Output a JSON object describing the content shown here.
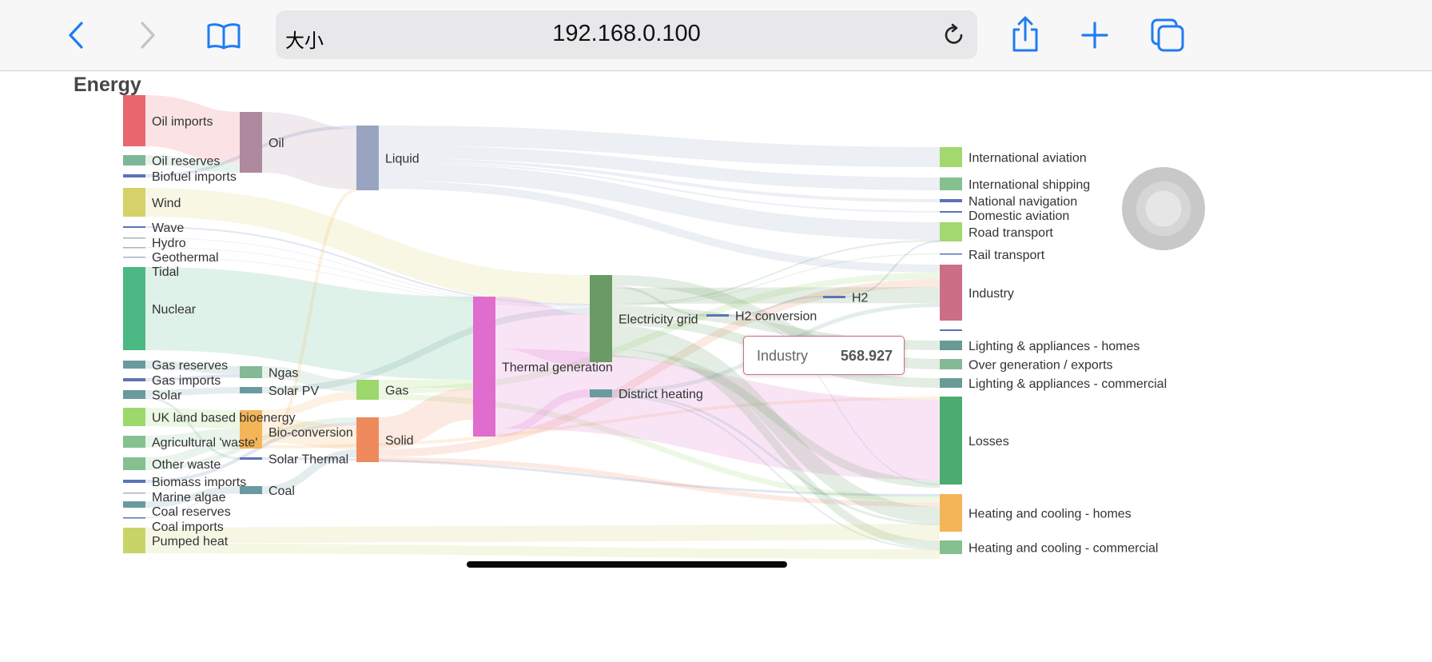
{
  "browser": {
    "text_size_label": "大小",
    "url": "192.168.0.100",
    "icons": [
      "back-icon",
      "forward-icon",
      "bookmarks-icon",
      "reload-icon",
      "share-icon",
      "new-tab-icon",
      "tabs-icon"
    ],
    "accent_color": "#1f7cf0"
  },
  "chart_data": {
    "type": "sankey",
    "title": "Energy",
    "nodes": [
      {
        "name": "Oil imports",
        "color": "#e8666e"
      },
      {
        "name": "Oil reserves",
        "color": "#7fb59a"
      },
      {
        "name": "Biofuel imports",
        "color": "#5b73b5"
      },
      {
        "name": "Wind",
        "color": "#d4d268"
      },
      {
        "name": "Wave",
        "color": "#5b73b5"
      },
      {
        "name": "Hydro",
        "color": "#aab0c0"
      },
      {
        "name": "Geothermal",
        "color": "#aab0c0"
      },
      {
        "name": "Tidal",
        "color": "#aab0c0"
      },
      {
        "name": "Nuclear",
        "color": "#4cb884"
      },
      {
        "name": "Gas reserves",
        "color": "#6a9aa0"
      },
      {
        "name": "Gas imports",
        "color": "#5b73b5"
      },
      {
        "name": "Solar",
        "color": "#6a9aa0"
      },
      {
        "name": "UK land based bioenergy",
        "color": "#9dd86c"
      },
      {
        "name": "Agricultural 'waste'",
        "color": "#85c090"
      },
      {
        "name": "Other waste",
        "color": "#85c090"
      },
      {
        "name": "Biomass imports",
        "color": "#5b73b5"
      },
      {
        "name": "Marine algae",
        "color": "#aab0c0"
      },
      {
        "name": "Coal reserves",
        "color": "#6a9aa0"
      },
      {
        "name": "Coal imports",
        "color": "#5b73b5"
      },
      {
        "name": "Pumped heat",
        "color": "#c8d468"
      },
      {
        "name": "Oil",
        "color": "#ad8a9e"
      },
      {
        "name": "Ngas",
        "color": "#85b894"
      },
      {
        "name": "Solar PV",
        "color": "#6a9aa0"
      },
      {
        "name": "Bio-conversion",
        "color": "#f4b458"
      },
      {
        "name": "Solar Thermal",
        "color": "#5b73b5"
      },
      {
        "name": "Coal",
        "color": "#6a9aa0"
      },
      {
        "name": "Liquid",
        "color": "#98a4c0"
      },
      {
        "name": "Gas",
        "color": "#9dd86c"
      },
      {
        "name": "Solid",
        "color": "#ee8a5c"
      },
      {
        "name": "Thermal generation",
        "color": "#e06cce"
      },
      {
        "name": "Electricity grid",
        "color": "#6a9a66"
      },
      {
        "name": "District heating",
        "color": "#6a9aa0"
      },
      {
        "name": "H2 conversion",
        "color": "#5b73b5"
      },
      {
        "name": "H2",
        "color": "#5b73b5"
      },
      {
        "name": "International aviation",
        "color": "#a3d86e"
      },
      {
        "name": "International shipping",
        "color": "#85c090"
      },
      {
        "name": "National navigation",
        "color": "#5b73b5"
      },
      {
        "name": "Domestic aviation",
        "color": "#5b73b5"
      },
      {
        "name": "Road transport",
        "color": "#a3d86e"
      },
      {
        "name": "Rail transport",
        "color": "#5b73b5"
      },
      {
        "name": "Industry",
        "color": "#cc6e86"
      },
      {
        "name": "",
        "color": "#5b73b5"
      },
      {
        "name": "Lighting & appliances - homes",
        "color": "#6a9a94"
      },
      {
        "name": "Over generation / exports",
        "color": "#85b894"
      },
      {
        "name": "Lighting & appliances - commercial",
        "color": "#6a9a94"
      },
      {
        "name": "Losses",
        "color": "#4cac70"
      },
      {
        "name": "Heating and cooling - homes",
        "color": "#f4b458"
      },
      {
        "name": "Heating and cooling - commercial",
        "color": "#85c090"
      }
    ],
    "links": [
      [
        "Oil imports",
        "Oil"
      ],
      [
        "Oil reserves",
        "Oil"
      ],
      [
        "Biofuel imports",
        "Liquid"
      ],
      [
        "Oil",
        "Liquid"
      ],
      [
        "Liquid",
        "International aviation"
      ],
      [
        "Liquid",
        "International shipping"
      ],
      [
        "Liquid",
        "National navigation"
      ],
      [
        "Liquid",
        "Domestic aviation"
      ],
      [
        "Liquid",
        "Road transport"
      ],
      [
        "Liquid",
        "Industry"
      ],
      [
        "Wind",
        "Electricity grid"
      ],
      [
        "Wave",
        "Electricity grid"
      ],
      [
        "Hydro",
        "Electricity grid"
      ],
      [
        "Geothermal",
        "Electricity grid"
      ],
      [
        "Tidal",
        "Electricity grid"
      ],
      [
        "Nuclear",
        "Thermal generation"
      ],
      [
        "Gas reserves",
        "Ngas"
      ],
      [
        "Gas imports",
        "Ngas"
      ],
      [
        "Ngas",
        "Gas"
      ],
      [
        "Solar",
        "Solar PV"
      ],
      [
        "Solar",
        "Solar Thermal"
      ],
      [
        "Solar PV",
        "Electricity grid"
      ],
      [
        "UK land based bioenergy",
        "Bio-conversion"
      ],
      [
        "Agricultural 'waste'",
        "Bio-conversion"
      ],
      [
        "Other waste",
        "Bio-conversion"
      ],
      [
        "Other waste",
        "Solid"
      ],
      [
        "Biomass imports",
        "Solid"
      ],
      [
        "Marine algae",
        "Bio-conversion"
      ],
      [
        "Coal reserves",
        "Coal"
      ],
      [
        "Coal imports",
        "Coal"
      ],
      [
        "Bio-conversion",
        "Gas"
      ],
      [
        "Bio-conversion",
        "Solid"
      ],
      [
        "Bio-conversion",
        "Liquid"
      ],
      [
        "Bio-conversion",
        "Losses"
      ],
      [
        "Coal",
        "Solid"
      ],
      [
        "Solar Thermal",
        "Heating and cooling - homes"
      ],
      [
        "Gas",
        "Thermal generation"
      ],
      [
        "Gas",
        "Industry"
      ],
      [
        "Gas",
        "Heating and cooling - homes"
      ],
      [
        "Solid",
        "Thermal generation"
      ],
      [
        "Solid",
        "Industry"
      ],
      [
        "Solid",
        "Heating and cooling - homes"
      ],
      [
        "Thermal generation",
        "Electricity grid"
      ],
      [
        "Thermal generation",
        "Losses"
      ],
      [
        "Thermal generation",
        "District heating"
      ],
      [
        "Electricity grid",
        "Over generation / exports"
      ],
      [
        "Electricity grid",
        "H2 conversion"
      ],
      [
        "Electricity grid",
        "Industry"
      ],
      [
        "Electricity grid",
        "Road transport"
      ],
      [
        "Electricity grid",
        "Rail transport"
      ],
      [
        "Electricity grid",
        "Lighting & appliances - homes"
      ],
      [
        "Electricity grid",
        "Lighting & appliances - commercial"
      ],
      [
        "Electricity grid",
        "Heating and cooling - homes"
      ],
      [
        "Electricity grid",
        "Heating and cooling - commercial"
      ],
      [
        "Electricity grid",
        "Losses"
      ],
      [
        "District heating",
        "Industry"
      ],
      [
        "District heating",
        "Heating and cooling - homes"
      ],
      [
        "District heating",
        "Heating and cooling - commercial"
      ],
      [
        "H2 conversion",
        "H2"
      ],
      [
        "H2 conversion",
        "Losses"
      ],
      [
        "H2",
        "Road transport"
      ],
      [
        "Pumped heat",
        "Heating and cooling - homes"
      ],
      [
        "Pumped heat",
        "Heating and cooling - commercial"
      ]
    ],
    "tooltip": {
      "name": "Industry",
      "value": "568.927"
    }
  }
}
